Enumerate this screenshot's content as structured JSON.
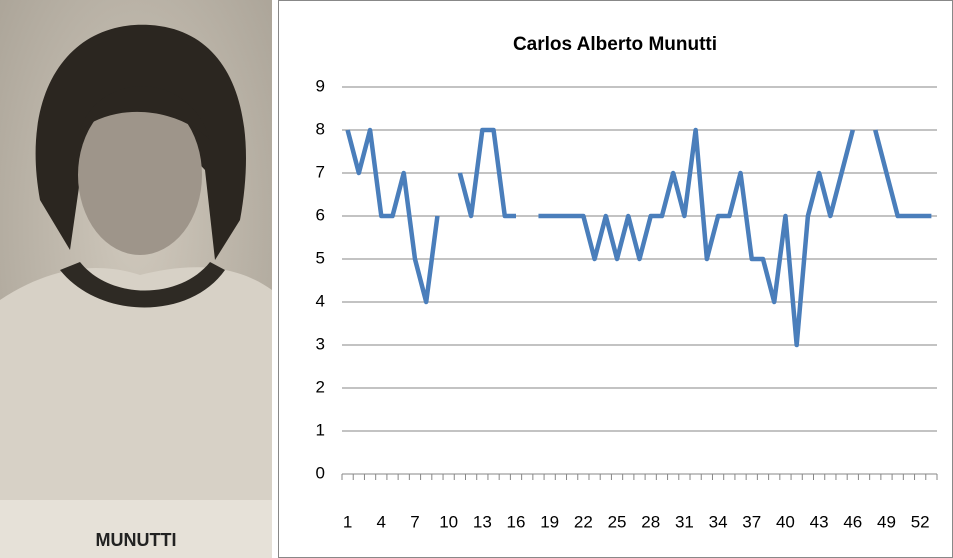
{
  "photo": {
    "caption": "MUNUTTI"
  },
  "chart_data": {
    "type": "line",
    "title": "Carlos Alberto Munutti",
    "categories": [
      1,
      null,
      null,
      4,
      null,
      null,
      7,
      null,
      null,
      10,
      null,
      null,
      13,
      null,
      null,
      16,
      null,
      null,
      19,
      null,
      null,
      22,
      null,
      null,
      25,
      null,
      null,
      28,
      null,
      null,
      31,
      null,
      null,
      34,
      null,
      null,
      37,
      null,
      null,
      40,
      null,
      null,
      43,
      null,
      null,
      46,
      null,
      null,
      49,
      null,
      null,
      52,
      null
    ],
    "series": [
      {
        "name": "Munutti",
        "color": "#4a7ebb",
        "values": [
          8,
          7,
          8,
          6,
          6,
          7,
          5,
          4,
          6,
          null,
          7,
          6,
          8,
          8,
          6,
          6,
          null,
          6,
          6,
          6,
          6,
          6,
          5,
          6,
          5,
          6,
          5,
          6,
          6,
          7,
          6,
          8,
          5,
          6,
          6,
          7,
          5,
          5,
          4,
          6,
          3,
          6,
          7,
          6,
          7,
          8,
          null,
          8,
          7,
          6,
          6,
          6,
          6
        ]
      }
    ],
    "ylim": [
      0,
      9
    ],
    "yticks": [
      0,
      1,
      2,
      3,
      4,
      5,
      6,
      7,
      8,
      9
    ],
    "grid": true
  }
}
